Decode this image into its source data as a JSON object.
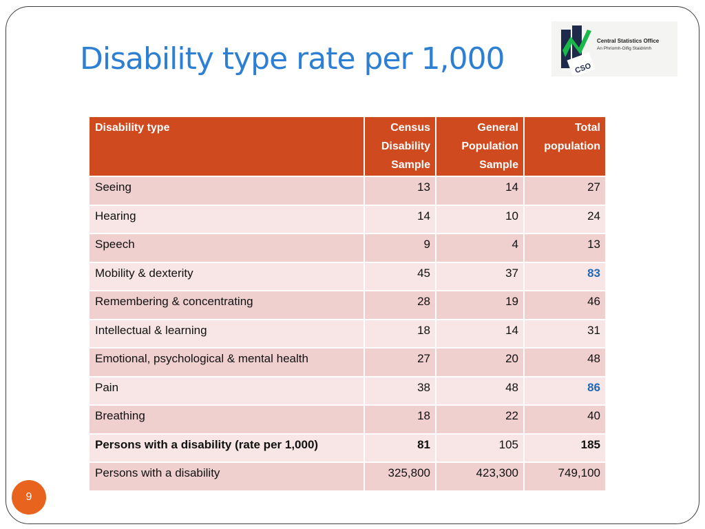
{
  "slide": {
    "title": "Disability type rate per 1,000",
    "page_number": "9",
    "logo": {
      "name": "Central Statistics Office",
      "subtitle": "An Phríomh-Oifig Staidrimh",
      "mark_letters": "CSO"
    }
  },
  "colors": {
    "title": "#2d7fd3",
    "header_bg": "#cf4a1e",
    "row_odd": "#efd0cf",
    "row_even": "#f7e6e5",
    "highlight_value": "#1f68b8",
    "page_badge": "#e8631d"
  },
  "table": {
    "headers": {
      "type": "Disability type",
      "census": [
        "Census",
        "Disability",
        "Sample"
      ],
      "general": [
        "General",
        "Population",
        "Sample"
      ],
      "total": [
        "Total",
        "population"
      ]
    },
    "rows": [
      {
        "type": "Seeing",
        "census": "13",
        "general": "14",
        "total": "27"
      },
      {
        "type": "Hearing",
        "census": "14",
        "general": "10",
        "total": "24"
      },
      {
        "type": "Speech",
        "census": "9",
        "general": "4",
        "total": "13"
      },
      {
        "type": "Mobility & dexterity",
        "census": "45",
        "general": "37",
        "total": "83"
      },
      {
        "type": "Remembering & concentrating",
        "census": "28",
        "general": "19",
        "total": "46"
      },
      {
        "type": "Intellectual & learning",
        "census": "18",
        "general": "14",
        "total": "31"
      },
      {
        "type": "Emotional, psychological & mental health",
        "census": "27",
        "general": "20",
        "total": "48"
      },
      {
        "type": "Pain",
        "census": "38",
        "general": "48",
        "total": "86"
      },
      {
        "type": "Breathing",
        "census": "18",
        "general": "22",
        "total": "40"
      },
      {
        "type": "Persons with a disability (rate per 1,000)",
        "census": "81",
        "general": "105",
        "total": "185"
      },
      {
        "type": "Persons with a disability",
        "census": "325,800",
        "general": "423,300",
        "total": "749,100"
      }
    ]
  }
}
